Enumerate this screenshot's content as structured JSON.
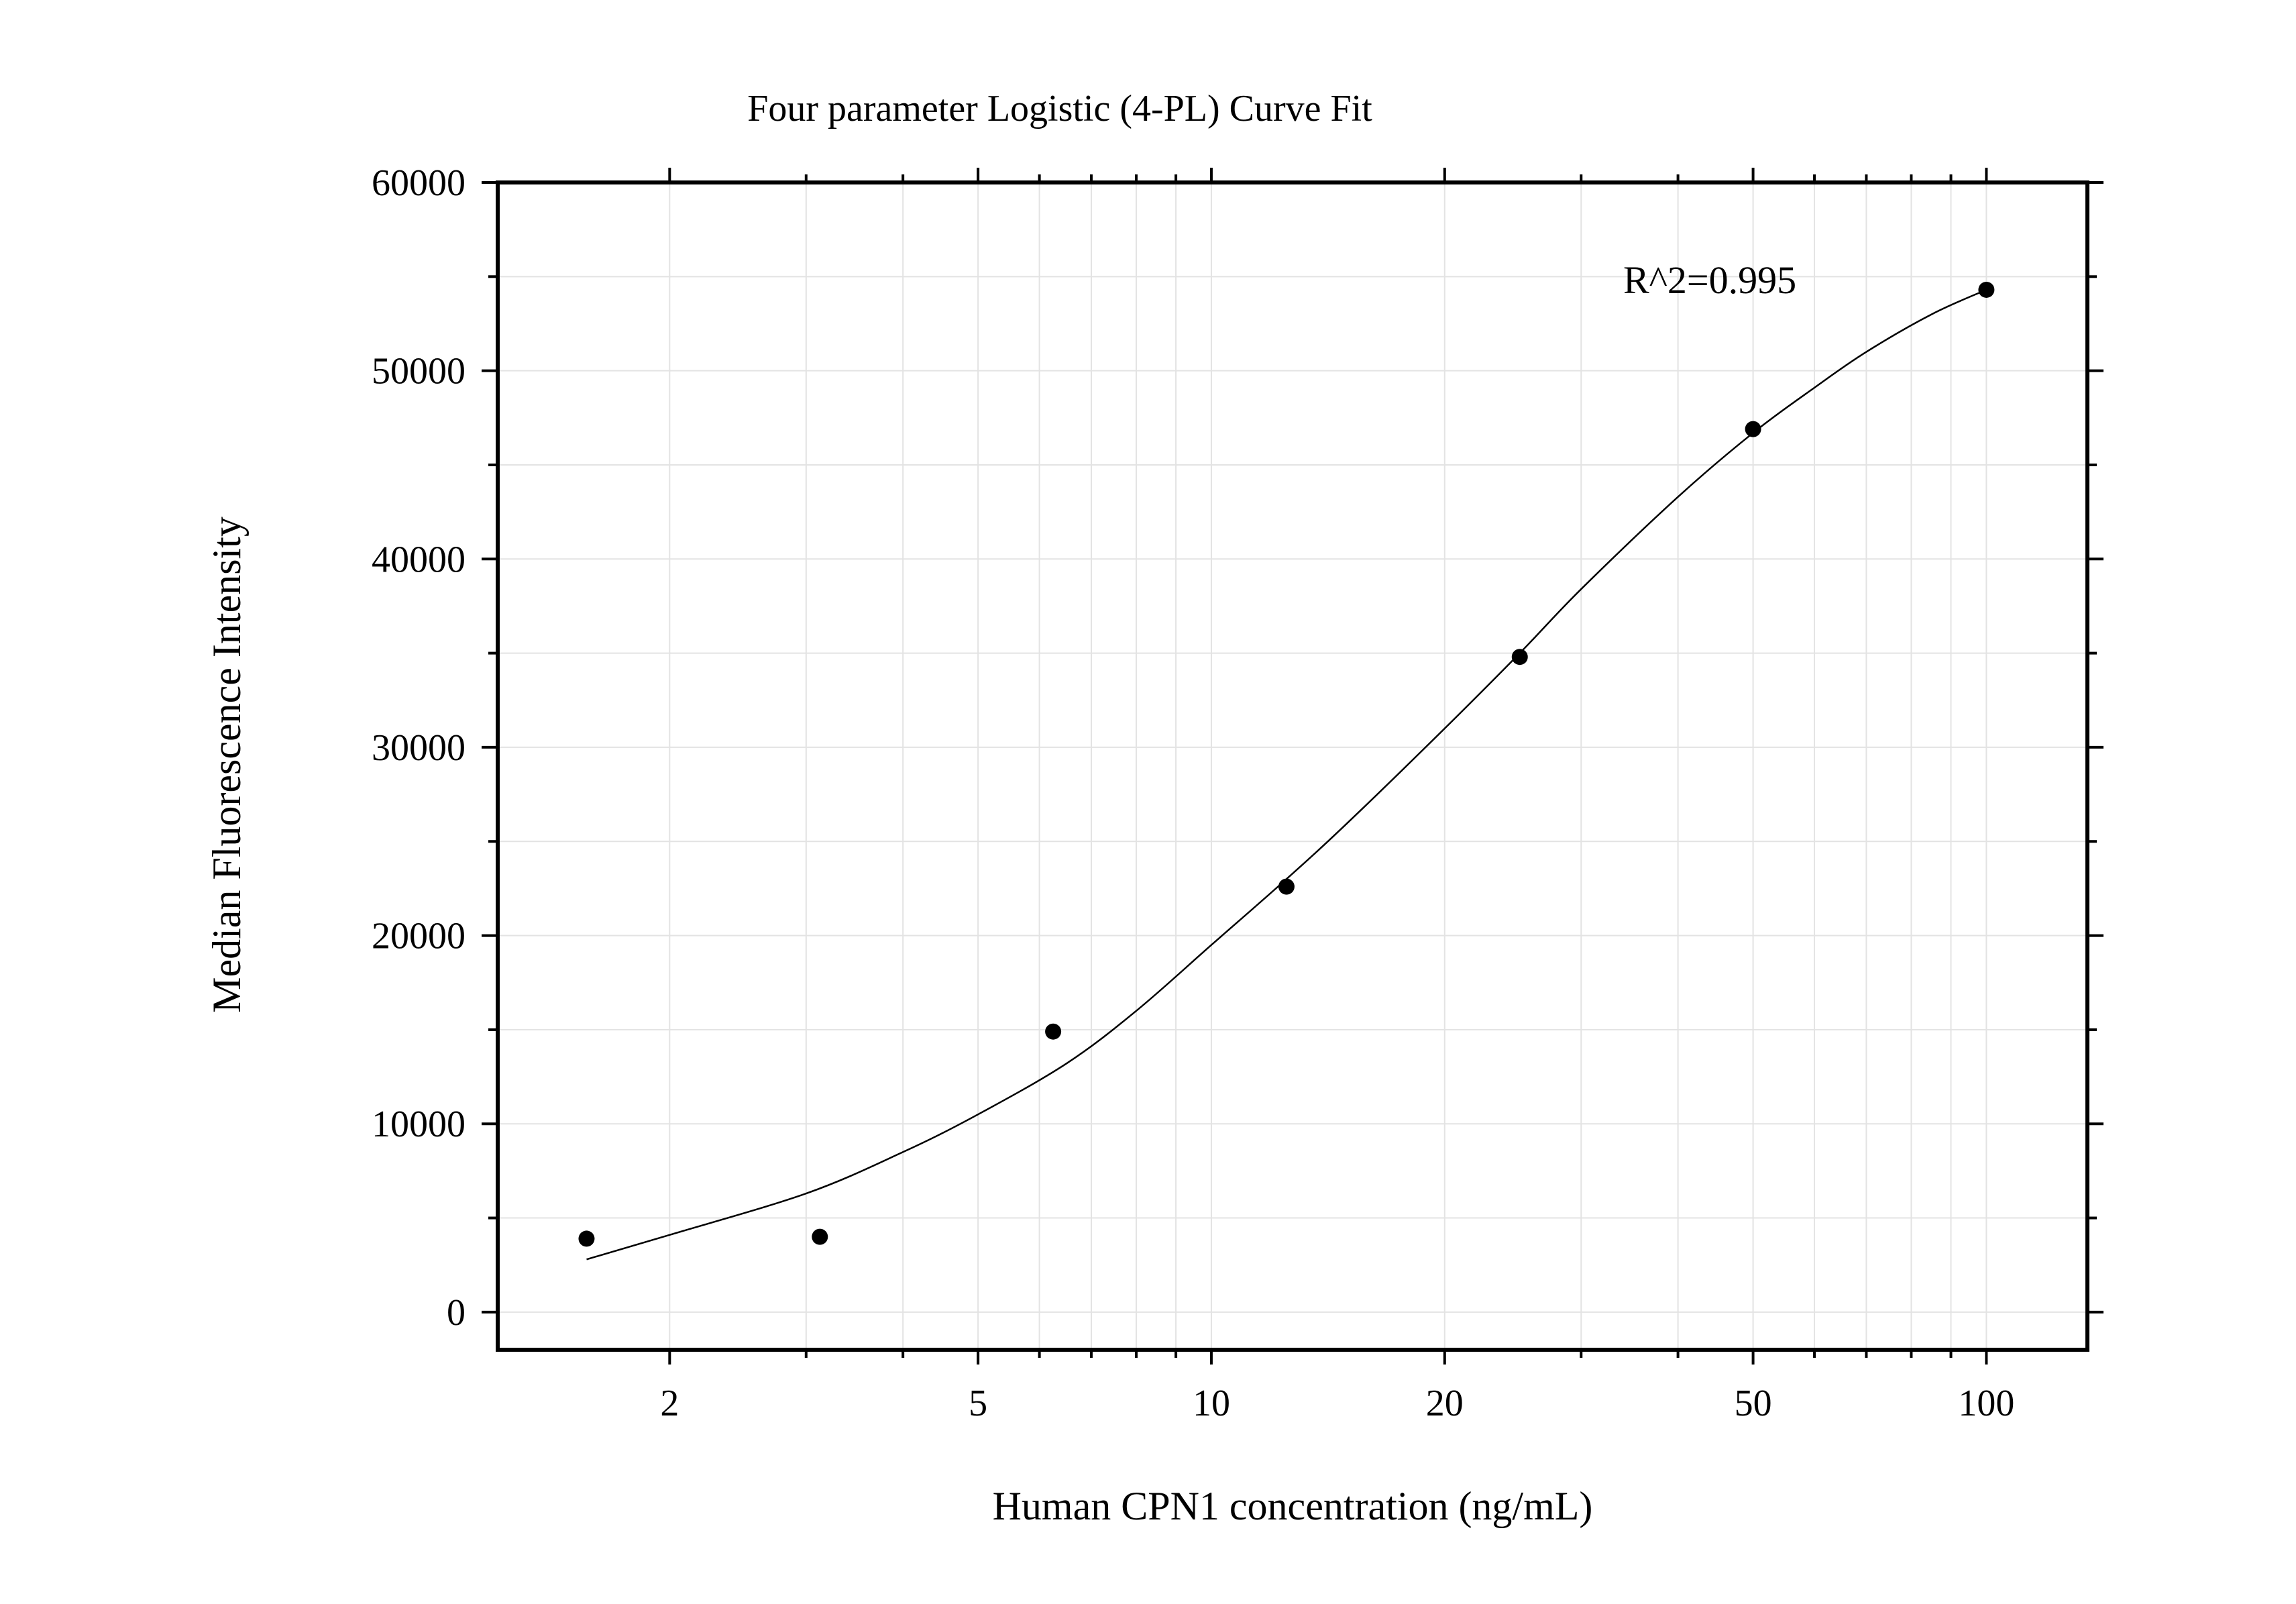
{
  "chart_data": {
    "type": "scatter",
    "title": "Four parameter Logistic (4-PL) Curve Fit",
    "xlabel": "Human CPN1 concentration (ng/mL)",
    "ylabel": "Median Fluorescence Intensity",
    "x_scale": "log",
    "xlim": [
      1.2,
      135
    ],
    "ylim": [
      -2000,
      60000
    ],
    "x_ticks": [
      2,
      5,
      10,
      20,
      50,
      100
    ],
    "x_tick_labels": [
      "2",
      "5",
      "10",
      "20",
      "50",
      "100"
    ],
    "y_ticks": [
      0,
      10000,
      20000,
      30000,
      40000,
      50000,
      60000
    ],
    "y_tick_labels": [
      "0",
      "10000",
      "20000",
      "30000",
      "40000",
      "50000",
      "60000"
    ],
    "grid": true,
    "annotation": "R^2=0.995",
    "colors": {
      "points": "#000000",
      "curve": "#000000",
      "grid": "#e3e3e3",
      "axis": "#000000"
    },
    "points": [
      {
        "x": 1.5625,
        "y": 3900
      },
      {
        "x": 3.125,
        "y": 4000
      },
      {
        "x": 6.25,
        "y": 14900
      },
      {
        "x": 12.5,
        "y": 22600
      },
      {
        "x": 25,
        "y": 34800
      },
      {
        "x": 50,
        "y": 46900
      },
      {
        "x": 100,
        "y": 54300
      }
    ],
    "curve": [
      {
        "x": 1.5625,
        "y": 2800
      },
      {
        "x": 2.0,
        "y": 4100
      },
      {
        "x": 3.0,
        "y": 6300
      },
      {
        "x": 4.0,
        "y": 8500
      },
      {
        "x": 5.0,
        "y": 10500
      },
      {
        "x": 6.5,
        "y": 13200
      },
      {
        "x": 8.0,
        "y": 16000
      },
      {
        "x": 10.0,
        "y": 19500
      },
      {
        "x": 12.5,
        "y": 23000
      },
      {
        "x": 15.0,
        "y": 26000
      },
      {
        "x": 20.0,
        "y": 31000
      },
      {
        "x": 25.0,
        "y": 35000
      },
      {
        "x": 30.0,
        "y": 38400
      },
      {
        "x": 40.0,
        "y": 43300
      },
      {
        "x": 50.0,
        "y": 46700
      },
      {
        "x": 60.0,
        "y": 49100
      },
      {
        "x": 70.0,
        "y": 51000
      },
      {
        "x": 85.0,
        "y": 53000
      },
      {
        "x": 100.0,
        "y": 54300
      }
    ]
  }
}
